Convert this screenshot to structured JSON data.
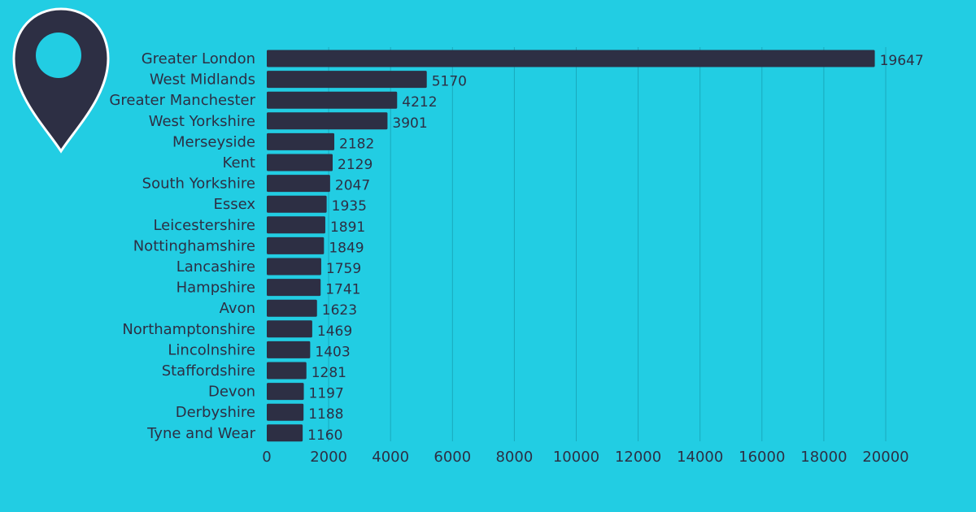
{
  "colors": {
    "background": "#22cde3",
    "bar": "#2d2f44",
    "gridline": "#1aa9bc",
    "text": "#2d2f44",
    "pin_outline": "#ffffff"
  },
  "icons": {
    "pin": "map-pin-icon"
  },
  "chart_data": {
    "type": "bar",
    "orientation": "horizontal",
    "title": "",
    "xlabel": "",
    "ylabel": "",
    "categories": [
      "Greater London",
      "West Midlands",
      "Greater Manchester",
      "West Yorkshire",
      "Merseyside",
      "Kent",
      "South Yorkshire",
      "Essex",
      "Leicestershire",
      "Nottinghamshire",
      "Lancashire",
      "Hampshire",
      "Avon",
      "Northamptonshire",
      "Lincolnshire",
      "Staffordshire",
      "Devon",
      "Derbyshire",
      "Tyne and Wear"
    ],
    "values": [
      19647,
      5170,
      4212,
      3901,
      2182,
      2129,
      2047,
      1935,
      1891,
      1849,
      1759,
      1741,
      1623,
      1469,
      1403,
      1281,
      1197,
      1188,
      1160
    ],
    "value_labels": [
      "19647",
      "5170",
      "4212",
      "3901",
      "2182",
      "2129",
      "2047",
      "1935",
      "1891",
      "1849",
      "1759",
      "1741",
      "1623",
      "1469",
      "1403",
      "1281",
      "1197",
      "1188",
      "1160"
    ],
    "xlim": [
      0,
      20000
    ],
    "x_ticks": [
      "0",
      "2000",
      "4000",
      "6000",
      "8000",
      "10000",
      "12000",
      "14000",
      "16000",
      "18000",
      "20000"
    ],
    "grid": true,
    "legend": "none"
  }
}
